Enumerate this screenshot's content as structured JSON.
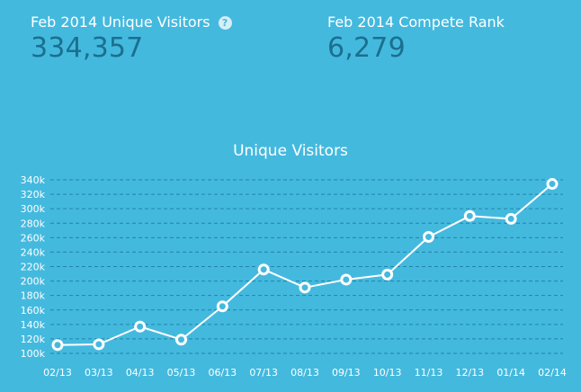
{
  "stats": {
    "visitors_label": "Feb 2014 Unique Visitors",
    "visitors_value": "334,357",
    "help_glyph": "?",
    "rank_label": "Feb 2014 Compete Rank",
    "rank_value": "6,279"
  },
  "colors": {
    "background": "#44b9de",
    "stat_value": "#1b6f8f",
    "line": "#ffffff",
    "grid": "#1f84a8"
  },
  "chart_data": {
    "type": "line",
    "title": "Unique Visitors",
    "categories": [
      "02/13",
      "03/13",
      "04/13",
      "05/13",
      "06/13",
      "07/13",
      "08/13",
      "09/13",
      "10/13",
      "11/13",
      "12/13",
      "01/14",
      "02/14"
    ],
    "series": [
      {
        "values": [
          111500,
          112500,
          137000,
          119000,
          165000,
          216000,
          191000,
          202000,
          209000,
          261000,
          290000,
          286000,
          334357
        ]
      }
    ],
    "ylim": [
      100000,
      340000
    ],
    "yticks": [
      {
        "value": 100000,
        "label": "100k"
      },
      {
        "value": 120000,
        "label": "120k"
      },
      {
        "value": 140000,
        "label": "140k"
      },
      {
        "value": 160000,
        "label": "160k"
      },
      {
        "value": 180000,
        "label": "180k"
      },
      {
        "value": 200000,
        "label": "200k"
      },
      {
        "value": 220000,
        "label": "220k"
      },
      {
        "value": 240000,
        "label": "240k"
      },
      {
        "value": 260000,
        "label": "260k"
      },
      {
        "value": 280000,
        "label": "280k"
      },
      {
        "value": 300000,
        "label": "300k"
      },
      {
        "value": 320000,
        "label": "320k"
      },
      {
        "value": 340000,
        "label": "340k"
      }
    ],
    "grid": true,
    "legend": "none"
  }
}
